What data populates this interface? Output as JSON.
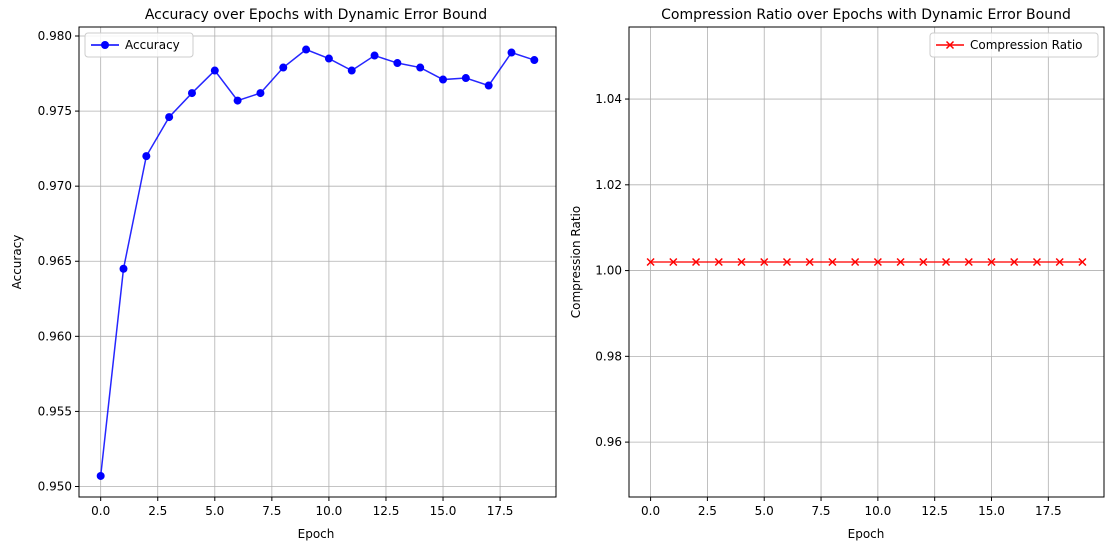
{
  "chart_data": [
    {
      "type": "line",
      "title": "Accuracy over Epochs with Dynamic Error Bound",
      "xlabel": "Epoch",
      "ylabel": "Accuracy",
      "xlim": [
        -0.95,
        19.95
      ],
      "ylim": [
        0.9493,
        0.9806
      ],
      "xticks": [
        0.0,
        2.5,
        5.0,
        7.5,
        10.0,
        12.5,
        15.0,
        17.5
      ],
      "xtick_labels": [
        "0.0",
        "2.5",
        "5.0",
        "7.5",
        "10.0",
        "12.5",
        "15.0",
        "17.5"
      ],
      "yticks": [
        0.95,
        0.955,
        0.96,
        0.965,
        0.97,
        0.975,
        0.98
      ],
      "ytick_labels": [
        "0.950",
        "0.955",
        "0.960",
        "0.965",
        "0.970",
        "0.975",
        "0.980"
      ],
      "grid": true,
      "legend": "upper left",
      "series": [
        {
          "name": "Accuracy",
          "color": "#0000ff",
          "marker": "circle",
          "x": [
            0,
            1,
            2,
            3,
            4,
            5,
            6,
            7,
            8,
            9,
            10,
            11,
            12,
            13,
            14,
            15,
            16,
            17,
            18,
            19
          ],
          "values": [
            0.9507,
            0.9645,
            0.972,
            0.9746,
            0.9762,
            0.9777,
            0.9757,
            0.9762,
            0.9779,
            0.9791,
            0.9785,
            0.9777,
            0.9787,
            0.9782,
            0.9779,
            0.9771,
            0.9772,
            0.9767,
            0.9789,
            0.9784
          ]
        }
      ]
    },
    {
      "type": "line",
      "title": "Compression Ratio over Epochs with Dynamic Error Bound",
      "xlabel": "Epoch",
      "ylabel": "Compression Ratio",
      "xlim": [
        -0.95,
        19.95
      ],
      "ylim": [
        0.9472,
        1.0568
      ],
      "xticks": [
        0.0,
        2.5,
        5.0,
        7.5,
        10.0,
        12.5,
        15.0,
        17.5
      ],
      "xtick_labels": [
        "0.0",
        "2.5",
        "5.0",
        "7.5",
        "10.0",
        "12.5",
        "15.0",
        "17.5"
      ],
      "yticks": [
        0.96,
        0.98,
        1.0,
        1.02,
        1.04
      ],
      "ytick_labels": [
        "0.96",
        "0.98",
        "1.00",
        "1.02",
        "1.04"
      ],
      "grid": true,
      "legend": "upper right",
      "series": [
        {
          "name": "Compression Ratio",
          "color": "#ff0000",
          "marker": "x",
          "x": [
            0,
            1,
            2,
            3,
            4,
            5,
            6,
            7,
            8,
            9,
            10,
            11,
            12,
            13,
            14,
            15,
            16,
            17,
            18,
            19
          ],
          "values": [
            1.002,
            1.002,
            1.002,
            1.002,
            1.002,
            1.002,
            1.002,
            1.002,
            1.002,
            1.002,
            1.002,
            1.002,
            1.002,
            1.002,
            1.002,
            1.002,
            1.002,
            1.002,
            1.002,
            1.002
          ]
        }
      ]
    }
  ]
}
